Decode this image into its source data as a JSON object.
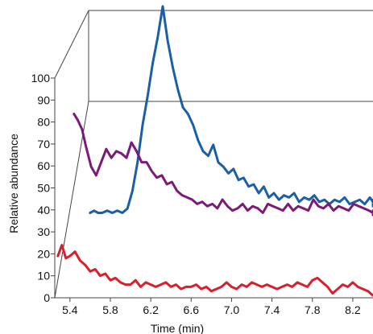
{
  "chart_data": {
    "type": "line",
    "style": "3d-waterfall",
    "xlabel": "Time (min)",
    "ylabel": "Relative abundance",
    "xlim": [
      5.25,
      8.4
    ],
    "ylim": [
      0,
      100
    ],
    "x_ticks": [
      "5.4",
      "5.8",
      "6.2",
      "6.6",
      "7.0",
      "7.4",
      "7.8",
      "8.2"
    ],
    "y_ticks": [
      "0",
      "10",
      "20",
      "30",
      "40",
      "50",
      "60",
      "70",
      "80",
      "90",
      "100"
    ],
    "grid": false,
    "legend": "none",
    "series": [
      {
        "color": "#d8202c",
        "depth": 0,
        "x": [
          5.28,
          5.32,
          5.36,
          5.4,
          5.45,
          5.5,
          5.55,
          5.6,
          5.65,
          5.7,
          5.75,
          5.8,
          5.85,
          5.9,
          5.95,
          6.0,
          6.05,
          6.1,
          6.15,
          6.2,
          6.25,
          6.3,
          6.35,
          6.4,
          6.45,
          6.5,
          6.55,
          6.6,
          6.65,
          6.7,
          6.75,
          6.8,
          6.85,
          6.9,
          6.95,
          7.0,
          7.05,
          7.1,
          7.15,
          7.2,
          7.25,
          7.3,
          7.35,
          7.4,
          7.45,
          7.5,
          7.55,
          7.6,
          7.65,
          7.7,
          7.75,
          7.8,
          7.85,
          7.9,
          7.95,
          8.0,
          8.05,
          8.1,
          8.15,
          8.2,
          8.25,
          8.3,
          8.35,
          8.4
        ],
        "y": [
          19,
          24,
          18,
          19,
          21,
          17,
          15,
          12,
          13,
          10,
          11,
          8,
          9,
          7,
          6,
          6,
          8,
          5,
          7,
          6,
          5,
          6,
          7,
          5,
          6,
          4,
          5,
          5,
          6,
          4,
          5,
          3,
          4,
          5,
          7,
          5,
          4,
          6,
          5,
          7,
          6,
          5,
          6,
          5,
          4,
          5,
          6,
          5,
          7,
          6,
          5,
          8,
          9,
          7,
          5,
          2,
          4,
          6,
          5,
          7,
          5,
          4,
          3,
          1
        ]
      },
      {
        "color": "#7d1a78",
        "depth": 1,
        "x": [
          5.28,
          5.32,
          5.36,
          5.4,
          5.45,
          5.5,
          5.55,
          5.6,
          5.65,
          5.7,
          5.75,
          5.8,
          5.85,
          5.9,
          5.95,
          6.0,
          6.05,
          6.1,
          6.15,
          6.2,
          6.25,
          6.3,
          6.35,
          6.4,
          6.45,
          6.5,
          6.55,
          6.6,
          6.65,
          6.7,
          6.75,
          6.8,
          6.85,
          6.9,
          6.95,
          7.0,
          7.05,
          7.1,
          7.15,
          7.2,
          7.25,
          7.3,
          7.35,
          7.4,
          7.45,
          7.5,
          7.55,
          7.6,
          7.65,
          7.7,
          7.75,
          7.8,
          7.85,
          7.9,
          7.95,
          8.0,
          8.05,
          8.1,
          8.15,
          8.2,
          8.25,
          8.3,
          8.35,
          8.4
        ],
        "y": [
          50,
          47,
          43,
          35,
          26,
          22,
          28,
          34,
          30,
          33,
          32,
          30,
          37,
          33,
          28,
          28,
          24,
          21,
          22,
          18,
          19,
          15,
          13,
          12,
          11,
          9,
          10,
          8,
          9,
          7,
          11,
          8,
          6,
          7,
          9,
          6,
          8,
          7,
          5,
          9,
          8,
          7,
          6,
          9,
          6,
          8,
          7,
          6,
          11,
          8,
          7,
          9,
          6,
          8,
          7,
          6,
          9,
          8,
          7,
          6,
          5,
          6,
          4,
          5
        ]
      },
      {
        "color": "#1b5fa6",
        "depth": 2,
        "x": [
          5.28,
          5.32,
          5.36,
          5.4,
          5.45,
          5.5,
          5.55,
          5.6,
          5.65,
          5.7,
          5.75,
          5.8,
          5.85,
          5.9,
          5.95,
          6.0,
          6.05,
          6.1,
          6.15,
          6.2,
          6.25,
          6.3,
          6.35,
          6.4,
          6.45,
          6.5,
          6.55,
          6.6,
          6.65,
          6.7,
          6.75,
          6.8,
          6.85,
          6.9,
          6.95,
          7.0,
          7.05,
          7.1,
          7.15,
          7.2,
          7.25,
          7.3,
          7.35,
          7.4,
          7.45,
          7.5,
          7.55,
          7.6,
          7.65,
          7.7,
          7.75,
          7.8,
          7.85,
          7.9,
          7.95,
          8.0,
          8.05,
          8.1,
          8.15,
          8.2,
          8.25,
          8.3,
          8.35,
          8.4
        ],
        "y": [
          2,
          3,
          2,
          2,
          3,
          2,
          3,
          2,
          4,
          12,
          25,
          42,
          55,
          70,
          82,
          96,
          80,
          68,
          58,
          50,
          47,
          42,
          35,
          30,
          28,
          33,
          25,
          23,
          20,
          22,
          17,
          18,
          14,
          15,
          11,
          14,
          9,
          11,
          8,
          10,
          9,
          11,
          7,
          9,
          8,
          10,
          7,
          8,
          6,
          8,
          7,
          9,
          6,
          7,
          8,
          6,
          9,
          7,
          6,
          8,
          5,
          7,
          6,
          5
        ]
      }
    ]
  }
}
